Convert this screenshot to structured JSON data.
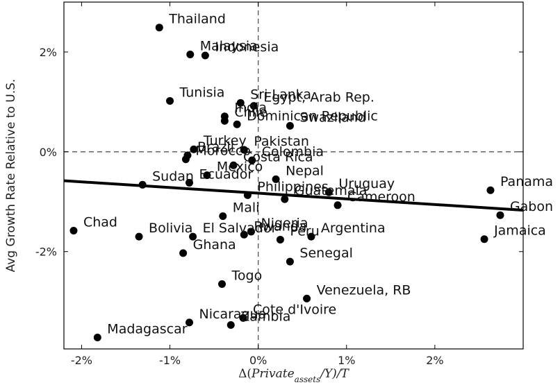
{
  "chart_data": {
    "type": "scatter",
    "xlabel": "Δ(Private_assets/Y)/T",
    "ylabel": "Avg Growth Rate Relative to U.S.",
    "xlim": [
      -2.2,
      3.0
    ],
    "ylim": [
      -3.95,
      3.0
    ],
    "x_ticks": [
      -2,
      -1,
      0,
      1,
      2
    ],
    "x_tick_labels": [
      "-2%",
      "-1%",
      "0%",
      "1%",
      "2%"
    ],
    "y_ticks": [
      2,
      0,
      -2
    ],
    "y_tick_labels": [
      "2%",
      "0%",
      "-2%"
    ],
    "grid": false,
    "reference_lines": [
      {
        "axis": "x",
        "value": 0,
        "style": "dashed"
      },
      {
        "axis": "y",
        "value": 0,
        "style": "dashed"
      }
    ],
    "fit_line": {
      "x": [
        -2.2,
        3.0
      ],
      "y": [
        -0.58,
        -1.17
      ]
    },
    "points": [
      {
        "label": "Thailand",
        "x": -1.12,
        "y": 2.49
      },
      {
        "label": "Malaysia",
        "x": -0.77,
        "y": 1.95
      },
      {
        "label": "Indonesia",
        "x": -0.6,
        "y": 1.93
      },
      {
        "label": "Tunisia",
        "x": -1.0,
        "y": 1.02
      },
      {
        "label": "Sri Lanka",
        "x": -0.2,
        "y": 0.98
      },
      {
        "label": "Egypt, Arab Rep.",
        "x": -0.05,
        "y": 0.92
      },
      {
        "label": "India",
        "x": -0.38,
        "y": 0.71
      },
      {
        "label": "Chile",
        "x": -0.38,
        "y": 0.62
      },
      {
        "label": "Dominican Republic",
        "x": -0.24,
        "y": 0.55
      },
      {
        "label": "Swaziland",
        "x": 0.36,
        "y": 0.52
      },
      {
        "label": "Turkey",
        "x": -0.73,
        "y": 0.05
      },
      {
        "label": "Pakistan",
        "x": -0.16,
        "y": 0.04
      },
      {
        "label": "Brazil",
        "x": -0.8,
        "y": -0.07
      },
      {
        "label": "Morocco",
        "x": -0.82,
        "y": -0.15
      },
      {
        "label": "Colombia",
        "x": -0.07,
        "y": -0.17
      },
      {
        "label": "Costa Rica",
        "x": -0.28,
        "y": -0.27
      },
      {
        "label": "Mexico",
        "x": -0.58,
        "y": -0.47
      },
      {
        "label": "Nepal",
        "x": 0.2,
        "y": -0.55
      },
      {
        "label": "Sudan",
        "x": -1.31,
        "y": -0.66
      },
      {
        "label": "Ecuador",
        "x": -0.78,
        "y": -0.62
      },
      {
        "label": "Philippines",
        "x": -0.12,
        "y": -0.87
      },
      {
        "label": "Uruguay",
        "x": 0.8,
        "y": -0.81
      },
      {
        "label": "Guatemala",
        "x": 0.3,
        "y": -0.95
      },
      {
        "label": "Cameroon",
        "x": 0.9,
        "y": -1.07
      },
      {
        "label": "Panama",
        "x": 2.63,
        "y": -0.77
      },
      {
        "label": "Gabon",
        "x": 2.74,
        "y": -1.27
      },
      {
        "label": "Mali",
        "x": -0.4,
        "y": -1.29
      },
      {
        "label": "Chad",
        "x": -2.09,
        "y": -1.58
      },
      {
        "label": "Bolivia",
        "x": -1.35,
        "y": -1.7
      },
      {
        "label": "El Salvador",
        "x": -0.74,
        "y": -1.7
      },
      {
        "label": "Nigeria",
        "x": -0.08,
        "y": -1.6
      },
      {
        "label": "Rwanda",
        "x": -0.16,
        "y": -1.66
      },
      {
        "label": "Peru",
        "x": 0.25,
        "y": -1.76
      },
      {
        "label": "Argentina",
        "x": 0.6,
        "y": -1.7
      },
      {
        "label": "Jamaica",
        "x": 2.56,
        "y": -1.75
      },
      {
        "label": "Ghana",
        "x": -0.85,
        "y": -2.03
      },
      {
        "label": "Senegal",
        "x": 0.36,
        "y": -2.2
      },
      {
        "label": "Togo",
        "x": -0.41,
        "y": -2.65
      },
      {
        "label": "Venezuela, RB",
        "x": 0.55,
        "y": -2.94
      },
      {
        "label": "Cote d'Ivoire",
        "x": -0.17,
        "y": -3.33
      },
      {
        "label": "Zambia",
        "x": -0.31,
        "y": -3.47
      },
      {
        "label": "Nicaragua",
        "x": -0.78,
        "y": -3.42
      },
      {
        "label": "Madagascar",
        "x": -1.82,
        "y": -3.72
      }
    ],
    "colors": {
      "points": "#000000",
      "line": "#000000",
      "reference": "#555555"
    }
  }
}
